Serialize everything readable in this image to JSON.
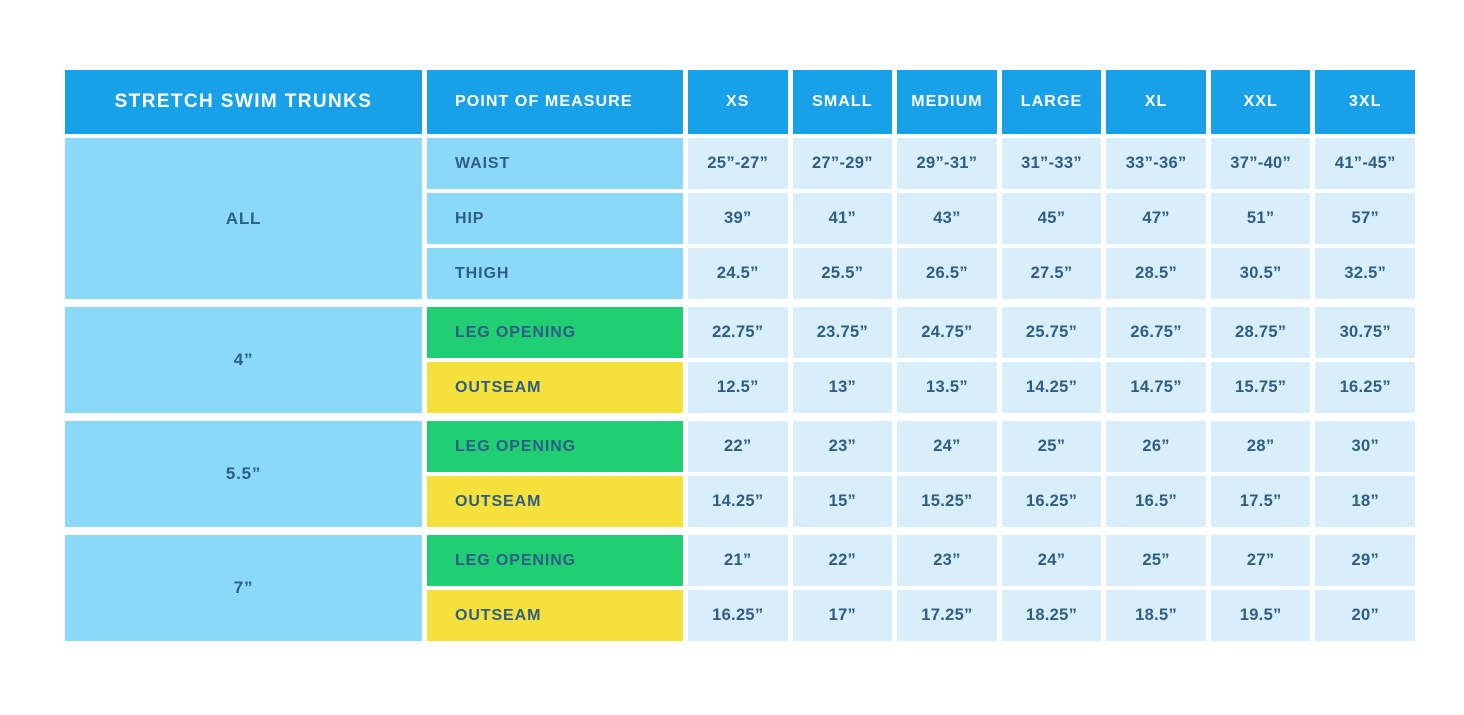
{
  "chart_data": {
    "type": "table",
    "title": "STRETCH SWIM TRUNKS",
    "columns": [
      "POINT OF MEASURE",
      "XS",
      "SMALL",
      "MEDIUM",
      "LARGE",
      "XL",
      "XXL",
      "3XL"
    ],
    "groups": [
      {
        "label": "ALL",
        "rows": [
          {
            "measure": "WAIST",
            "highlight": "blue",
            "values": [
              "25”-27”",
              "27”-29”",
              "29”-31”",
              "31”-33”",
              "33”-36”",
              "37”-40”",
              "41”-45”"
            ]
          },
          {
            "measure": "HIP",
            "highlight": "blue",
            "values": [
              "39”",
              "41”",
              "43”",
              "45”",
              "47”",
              "51”",
              "57”"
            ]
          },
          {
            "measure": "THIGH",
            "highlight": "blue",
            "values": [
              "24.5”",
              "25.5”",
              "26.5”",
              "27.5”",
              "28.5”",
              "30.5”",
              "32.5”"
            ]
          }
        ]
      },
      {
        "label": "4”",
        "rows": [
          {
            "measure": "LEG OPENING",
            "highlight": "green",
            "values": [
              "22.75”",
              "23.75”",
              "24.75”",
              "25.75”",
              "26.75”",
              "28.75”",
              "30.75”"
            ]
          },
          {
            "measure": "OUTSEAM",
            "highlight": "yellow",
            "values": [
              "12.5”",
              "13”",
              "13.5”",
              "14.25”",
              "14.75”",
              "15.75”",
              "16.25”"
            ]
          }
        ]
      },
      {
        "label": "5.5”",
        "rows": [
          {
            "measure": "LEG OPENING",
            "highlight": "green",
            "values": [
              "22”",
              "23”",
              "24”",
              "25”",
              "26”",
              "28”",
              "30”"
            ]
          },
          {
            "measure": "OUTSEAM",
            "highlight": "yellow",
            "values": [
              "14.25”",
              "15”",
              "15.25”",
              "16.25”",
              "16.5”",
              "17.5”",
              "18”"
            ]
          }
        ]
      },
      {
        "label": "7”",
        "rows": [
          {
            "measure": "LEG OPENING",
            "highlight": "green",
            "values": [
              "21”",
              "22”",
              "23”",
              "24”",
              "25”",
              "27”",
              "29”"
            ]
          },
          {
            "measure": "OUTSEAM",
            "highlight": "yellow",
            "values": [
              "16.25”",
              "17”",
              "17.25”",
              "18.25”",
              "18.5”",
              "19.5”",
              "20”"
            ]
          }
        ]
      }
    ],
    "colors": {
      "header_bg": "#18A0E9",
      "group_bg": "#8BD9F9",
      "cell_bg": "#D8EFFB",
      "green_bg": "#21CE73",
      "yellow_bg": "#F5E03C",
      "text_dark": "#2E5E84",
      "header_text": "#FFFFFF"
    }
  }
}
